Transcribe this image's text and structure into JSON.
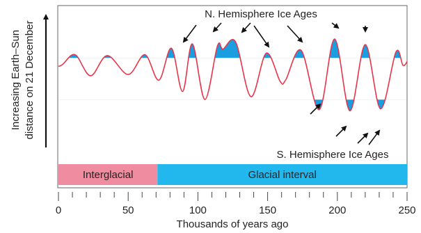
{
  "chart_data": {
    "type": "line",
    "ylabel_line1": "Increasing Earth–Sun",
    "ylabel_line2": "distance on 21 December",
    "xlabel": "Thousands of years ago",
    "xlim": [
      0,
      250
    ],
    "x_ticks": [
      0,
      50,
      100,
      150,
      200,
      250
    ],
    "x_minor_step": 10,
    "annotations": {
      "north": "N. Hemisphere Ice Ages",
      "south": "S. Hemisphere Ice Ages"
    },
    "periods": [
      {
        "label": "Interglacial",
        "start": 0,
        "end": 71,
        "color": "#f08ca0"
      },
      {
        "label": "Glacial interval",
        "start": 71,
        "end": 250,
        "color": "#22b8ee"
      }
    ],
    "series": [
      {
        "color": "#e8344a",
        "x": [
          0,
          3,
          12,
          23,
          35,
          50,
          62,
          72,
          81,
          89,
          96,
          105,
          114,
          118,
          127,
          138,
          149,
          159,
          163,
          174,
          187,
          198,
          209,
          220,
          231,
          242,
          247,
          250
        ],
        "y": [
          0.37,
          0.42,
          0.66,
          0.14,
          0.64,
          0.17,
          0.66,
          0.03,
          0.82,
          -0.25,
          0.93,
          -0.45,
          0.88,
          0.8,
          0.98,
          -0.38,
          0.7,
          0.0,
          0.04,
          0.77,
          -0.7,
          1.05,
          -0.73,
          0.91,
          -0.68,
          0.73,
          0.4,
          0.49
        ]
      }
    ],
    "ice_age_threshold_north": 0.58,
    "ice_age_threshold_south": -0.45,
    "fill_color": "#1a9ee0"
  }
}
